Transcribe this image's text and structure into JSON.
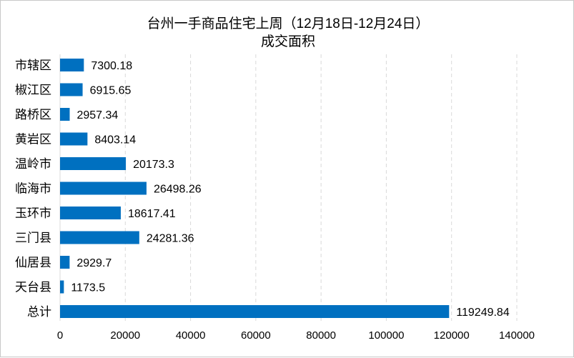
{
  "chart_data": {
    "type": "bar",
    "orientation": "horizontal",
    "title_line1": "台州一手商品住宅上周（12月18日-12月24日）",
    "title_line2": "成交面积",
    "categories": [
      "市辖区",
      "椒江区",
      "路桥区",
      "黄岩区",
      "温岭市",
      "临海市",
      "玉环市",
      "三门县",
      "仙居县",
      "天台县",
      "总计"
    ],
    "values": [
      7300.18,
      6915.65,
      2957.34,
      8403.14,
      20173.3,
      26498.26,
      18617.41,
      24281.36,
      2929.7,
      1173.5,
      119249.84
    ],
    "value_labels": [
      "7300.18",
      "6915.65",
      "2957.34",
      "8403.14",
      "20173.3",
      "26498.26",
      "18617.41",
      "24281.36",
      "2929.7",
      "1173.5",
      "119249.84"
    ],
    "xlim": [
      0,
      140000
    ],
    "x_ticks": [
      "0",
      "20000",
      "40000",
      "60000",
      "80000",
      "100000",
      "120000",
      "140000"
    ],
    "grid": "vertical dashed",
    "legend": "none",
    "bar_color": "#0070c0",
    "grid_color": "#d9d9d9"
  }
}
